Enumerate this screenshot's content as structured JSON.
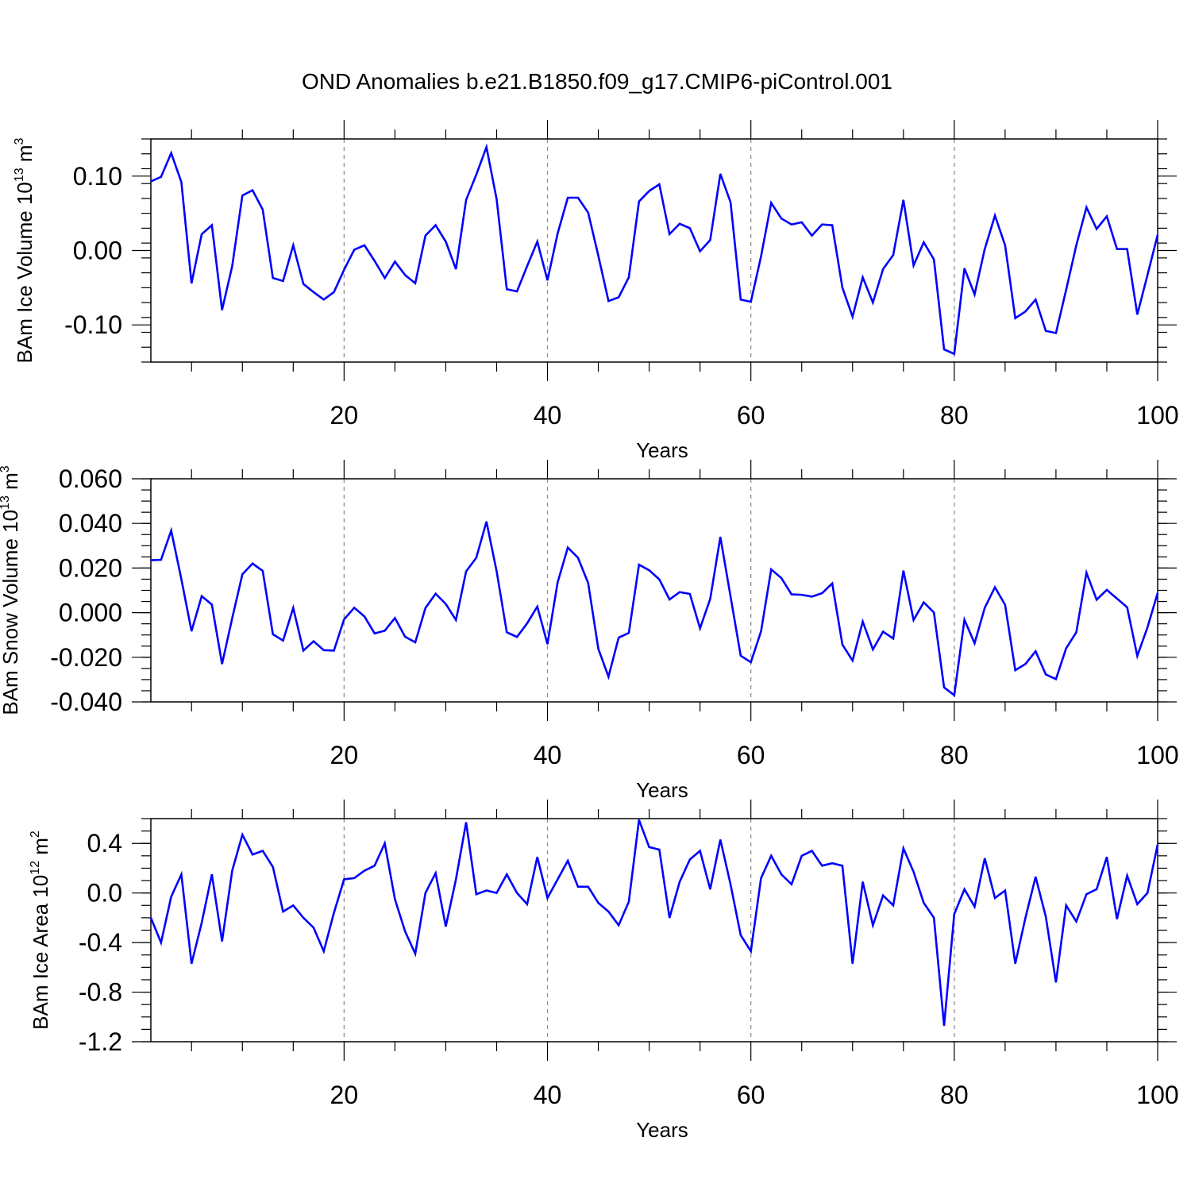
{
  "title": "OND Anomalies b.e21.B1850.f09_g17.CMIP6-piControl.001",
  "line_color": "#0000ff",
  "chart_data": [
    {
      "type": "line",
      "ylabel": "BAm Ice Volume 10",
      "ylabel_exp": "13",
      "ylabel_unit": " m",
      "ylabel_unit_exp": "3",
      "xlabel": "Years",
      "xlim": [
        1,
        100
      ],
      "ylim": [
        -0.15,
        0.15
      ],
      "x_ticks": [
        20,
        40,
        60,
        80,
        100
      ],
      "x_tick_labels": [
        "20",
        "40",
        "60",
        "80",
        "100"
      ],
      "y_ticks": [
        -0.1,
        0.0,
        0.1
      ],
      "y_tick_labels": [
        "-0.10",
        "0.00",
        "0.10"
      ],
      "y_minor_step": 0.02,
      "grid": "vertical dashed at x ticks",
      "series": [
        {
          "name": "BAm Ice Volume",
          "x_start": 1,
          "values": [
            0.093,
            0.099,
            0.131,
            0.092,
            -0.044,
            0.022,
            0.034,
            -0.08,
            -0.021,
            0.074,
            0.081,
            0.055,
            -0.037,
            -0.041,
            0.007,
            -0.045,
            -0.056,
            -0.066,
            -0.056,
            -0.026,
            0.001,
            0.007,
            -0.014,
            -0.037,
            -0.015,
            -0.033,
            -0.044,
            0.02,
            0.034,
            0.012,
            -0.025,
            0.068,
            0.102,
            0.139,
            0.069,
            -0.052,
            -0.055,
            -0.021,
            0.012,
            -0.04,
            0.023,
            0.071,
            0.071,
            0.051,
            -0.007,
            -0.068,
            -0.063,
            -0.036,
            0.066,
            0.08,
            0.089,
            0.022,
            0.036,
            0.03,
            -0.001,
            0.014,
            0.103,
            0.065,
            -0.066,
            -0.069,
            -0.008,
            0.064,
            0.043,
            0.035,
            0.038,
            0.02,
            0.035,
            0.034,
            -0.05,
            -0.089,
            -0.036,
            -0.07,
            -0.025,
            -0.006,
            0.068,
            -0.02,
            0.011,
            -0.012,
            -0.133,
            -0.139,
            -0.024,
            -0.059,
            0.002,
            0.047,
            0.007,
            -0.091,
            -0.082,
            -0.066,
            -0.108,
            -0.111,
            -0.053,
            0.007,
            0.058,
            0.029,
            0.046,
            0.002,
            0.002,
            -0.086,
            -0.033,
            0.021
          ]
        }
      ]
    },
    {
      "type": "line",
      "ylabel": "BAm Snow Volume 10",
      "ylabel_exp": "13",
      "ylabel_unit": " m",
      "ylabel_unit_exp": "3",
      "xlabel": "Years",
      "xlim": [
        1,
        100
      ],
      "ylim": [
        -0.04,
        0.06
      ],
      "x_ticks": [
        20,
        40,
        60,
        80,
        100
      ],
      "x_tick_labels": [
        "20",
        "40",
        "60",
        "80",
        "100"
      ],
      "y_ticks": [
        -0.04,
        -0.02,
        0.0,
        0.02,
        0.04,
        0.06
      ],
      "y_tick_labels": [
        "-0.040",
        "-0.020",
        "0.000",
        "0.020",
        "0.040",
        "0.060"
      ],
      "y_minor_step": 0.005,
      "grid": "vertical dashed at x ticks",
      "series": [
        {
          "name": "BAm Snow Volume",
          "x_start": 1,
          "values": [
            0.0235,
            0.0237,
            0.0368,
            0.015,
            -0.0083,
            0.0074,
            0.0036,
            -0.023,
            -0.0025,
            0.0172,
            0.022,
            0.0187,
            -0.0097,
            -0.0125,
            0.0021,
            -0.017,
            -0.0128,
            -0.0168,
            -0.017,
            -0.003,
            0.0022,
            -0.0017,
            -0.0093,
            -0.0081,
            -0.0024,
            -0.0108,
            -0.0133,
            0.0021,
            0.0085,
            0.0039,
            -0.0033,
            0.0185,
            0.0246,
            0.0408,
            0.0186,
            -0.0088,
            -0.0109,
            -0.0048,
            0.0027,
            -0.0141,
            0.0136,
            0.0292,
            0.0246,
            0.0133,
            -0.0162,
            -0.0287,
            -0.0112,
            -0.0091,
            0.0215,
            0.019,
            0.0149,
            0.0059,
            0.0092,
            0.0084,
            -0.007,
            0.0061,
            0.0339,
            0.0073,
            -0.0193,
            -0.0222,
            -0.0084,
            0.0194,
            0.0155,
            0.0082,
            0.008,
            0.0072,
            0.0087,
            0.0131,
            -0.0143,
            -0.0215,
            -0.004,
            -0.0165,
            -0.0085,
            -0.0116,
            0.0188,
            -0.0033,
            0.0046,
            0.0001,
            -0.0335,
            -0.037,
            -0.0032,
            -0.0137,
            0.0022,
            0.0114,
            0.0035,
            -0.0258,
            -0.023,
            -0.0173,
            -0.0277,
            -0.0298,
            -0.016,
            -0.0088,
            0.0179,
            0.0058,
            0.0102,
            0.0063,
            0.0024,
            -0.0194,
            -0.0066,
            0.0088
          ]
        }
      ]
    },
    {
      "type": "line",
      "ylabel": "BAm Ice Area 10",
      "ylabel_exp": "12",
      "ylabel_unit": " m",
      "ylabel_unit_exp": "2",
      "xlabel": "Years",
      "xlim": [
        1,
        100
      ],
      "ylim": [
        -1.2,
        0.6
      ],
      "x_ticks": [
        20,
        40,
        60,
        80,
        100
      ],
      "x_tick_labels": [
        "20",
        "40",
        "60",
        "80",
        "100"
      ],
      "y_ticks": [
        -1.2,
        -0.8,
        -0.4,
        0.0,
        0.4
      ],
      "y_tick_labels": [
        "-1.2",
        "-0.8",
        "-0.4",
        "0.0",
        "0.4"
      ],
      "y_minor_step": 0.1,
      "grid": "vertical dashed at x ticks",
      "series": [
        {
          "name": "BAm Ice Area",
          "x_start": 1,
          "values": [
            -0.2,
            -0.4,
            -0.03,
            0.15,
            -0.57,
            -0.24,
            0.15,
            -0.39,
            0.18,
            0.47,
            0.31,
            0.34,
            0.21,
            -0.15,
            -0.1,
            -0.2,
            -0.28,
            -0.47,
            -0.16,
            0.11,
            0.12,
            0.18,
            0.22,
            0.4,
            -0.05,
            -0.31,
            -0.49,
            0.0,
            0.16,
            -0.27,
            0.11,
            0.57,
            -0.01,
            0.02,
            0.0,
            0.15,
            0.0,
            -0.09,
            0.29,
            -0.04,
            0.11,
            0.26,
            0.05,
            0.05,
            -0.08,
            -0.15,
            -0.26,
            -0.07,
            0.59,
            0.37,
            0.35,
            -0.2,
            0.09,
            0.27,
            0.34,
            0.03,
            0.43,
            0.07,
            -0.34,
            -0.47,
            0.12,
            0.3,
            0.15,
            0.07,
            0.3,
            0.34,
            0.22,
            0.24,
            0.22,
            -0.57,
            0.09,
            -0.26,
            -0.02,
            -0.1,
            0.36,
            0.17,
            -0.08,
            -0.2,
            -1.07,
            -0.17,
            0.03,
            -0.11,
            0.28,
            -0.04,
            0.02,
            -0.57,
            -0.2,
            0.13,
            -0.19,
            -0.72,
            -0.1,
            -0.23,
            -0.01,
            0.03,
            0.29,
            -0.21,
            0.14,
            -0.09,
            0.0,
            0.39
          ]
        }
      ]
    }
  ]
}
